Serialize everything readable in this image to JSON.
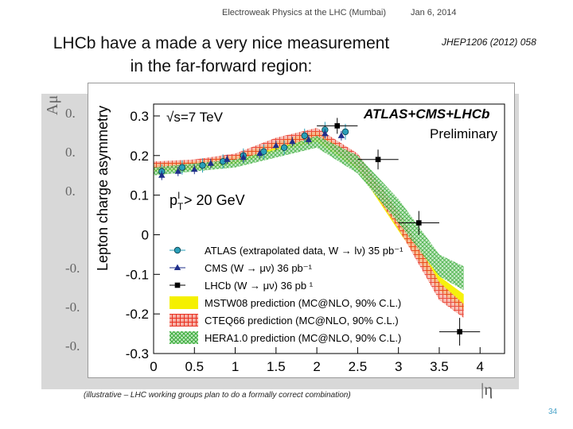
{
  "header": {
    "title": "Electroweak Physics at the LHC (Mumbai)",
    "date": "Jan 6, 2014"
  },
  "slide": {
    "title_line1": "LHCb have a made a very nice measurement",
    "title_line2": "in the far-forward region:",
    "reference": "JHEP1206 (2012) 058",
    "caption": "(illustrative – LHC working groups plan to do a formally correct combination)",
    "page_number": "34"
  },
  "background_plot": {
    "ylabel": "Aμ",
    "ticks": [
      "0.",
      "0.",
      "0.",
      "-0.",
      "-0.",
      "-0."
    ],
    "xlabel": "|η"
  },
  "chart_data": {
    "type": "scatter",
    "ylabel": "Lepton charge asymmetry",
    "xlabel": "|η|",
    "xlim": [
      0,
      4.3
    ],
    "ylim": [
      -0.3,
      0.33
    ],
    "xticks": [
      "0",
      "0.5",
      "1",
      "1.5",
      "2",
      "2.5",
      "3",
      "3.5",
      "4"
    ],
    "xtick_values": [
      0,
      0.5,
      1,
      1.5,
      2,
      2.5,
      3,
      3.5,
      4
    ],
    "yticks": [
      "0.3",
      "0.2",
      "0.1",
      "0",
      "-0.1",
      "-0.2",
      "-0.3"
    ],
    "ytick_values": [
      0.3,
      0.2,
      0.1,
      0,
      -0.1,
      -0.2,
      -0.3
    ],
    "annotations": {
      "energy": "√s=7 TeV",
      "experiment": "ATLAS+CMS+LHCb",
      "status": "Preliminary",
      "cut": "p",
      "cut_sup": "l",
      "cut_sub": "T",
      "cut_rest": " > 20 GeV"
    },
    "series": [
      {
        "name": "ATLAS (extrapolated data, W → lν) 35 pb⁻¹",
        "marker": "circle",
        "color": "#2a9fb8",
        "x": [
          0.1,
          0.35,
          0.6,
          0.85,
          1.1,
          1.35,
          1.6,
          1.85,
          2.1,
          2.35
        ],
        "y": [
          0.16,
          0.17,
          0.175,
          0.185,
          0.2,
          0.21,
          0.22,
          0.25,
          0.265,
          0.26
        ],
        "err": [
          0.018,
          0.018,
          0.018,
          0.018,
          0.018,
          0.018,
          0.018,
          0.018,
          0.02,
          0.02
        ]
      },
      {
        "name": "CMS (W → μν) 36 pb⁻¹",
        "marker": "triangle",
        "color": "#1f2f8a",
        "x": [
          0.1,
          0.3,
          0.5,
          0.7,
          0.9,
          1.1,
          1.3,
          1.5,
          1.7,
          1.9,
          2.1,
          2.3
        ],
        "y": [
          0.15,
          0.16,
          0.165,
          0.18,
          0.19,
          0.195,
          0.205,
          0.225,
          0.235,
          0.24,
          0.255,
          0.25
        ],
        "err": [
          0.012,
          0.012,
          0.012,
          0.012,
          0.012,
          0.012,
          0.012,
          0.012,
          0.012,
          0.012,
          0.012,
          0.012
        ]
      },
      {
        "name": "LHCb (W → μν) 36 pb ¹",
        "marker": "square",
        "color": "#000000",
        "x": [
          2.25,
          2.75,
          3.25,
          3.75
        ],
        "y": [
          0.275,
          0.19,
          0.03,
          -0.245
        ],
        "err": [
          0.02,
          0.025,
          0.03,
          0.035
        ],
        "xerr": [
          0.25,
          0.25,
          0.25,
          0.25
        ]
      }
    ],
    "bands": [
      {
        "name": "MSTW08 prediction (MC@NLO, 90% C.L.)",
        "color": "#f5f000",
        "x": [
          0,
          0.5,
          1,
          1.5,
          2,
          2.5,
          3,
          3.5,
          3.8
        ],
        "low": [
          0.16,
          0.165,
          0.18,
          0.21,
          0.235,
          0.165,
          0.01,
          -0.14,
          -0.19
        ],
        "high": [
          0.18,
          0.185,
          0.2,
          0.235,
          0.262,
          0.195,
          0.045,
          -0.105,
          -0.15
        ]
      },
      {
        "name": "CTEQ66 prediction (MC@NLO, 90% C.L.)",
        "color": "#e83020",
        "x": [
          0,
          0.5,
          1,
          1.5,
          2,
          2.5,
          3,
          3.5,
          3.8
        ],
        "low": [
          0.165,
          0.17,
          0.185,
          0.22,
          0.245,
          0.17,
          0.015,
          -0.165,
          -0.21
        ],
        "high": [
          0.185,
          0.19,
          0.205,
          0.245,
          0.27,
          0.205,
          0.06,
          -0.12,
          -0.175
        ]
      },
      {
        "name": "HERA1.0 prediction (MC@NLO, 90% C.L.)",
        "color": "#2aa52a",
        "x": [
          0,
          0.5,
          1,
          1.5,
          2,
          2.5,
          3,
          3.5,
          3.8
        ],
        "low": [
          0.15,
          0.16,
          0.17,
          0.195,
          0.22,
          0.155,
          0.03,
          -0.105,
          -0.14
        ],
        "high": [
          0.17,
          0.18,
          0.19,
          0.215,
          0.25,
          0.2,
          0.09,
          -0.05,
          -0.08
        ]
      }
    ],
    "legend_position": "bottom-left",
    "grid": false
  }
}
